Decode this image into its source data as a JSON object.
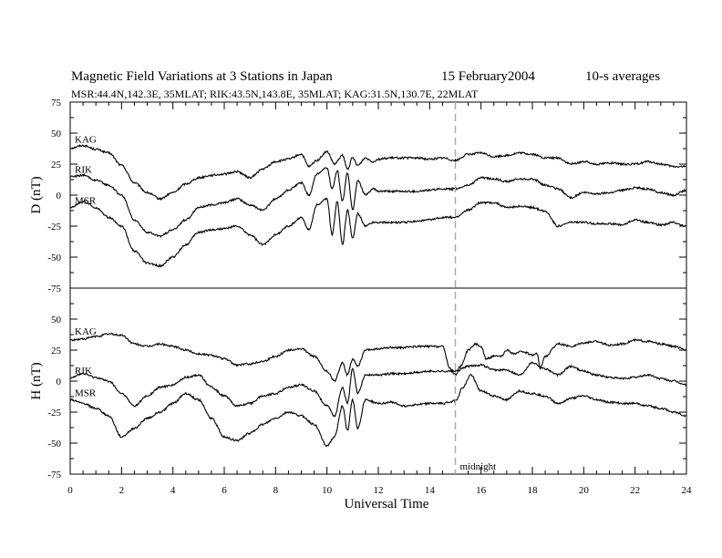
{
  "chart_data": {
    "type": "line",
    "title_left": "Magnetic Field Variations at 3 Stations in Japan",
    "title_date": "15 February2004",
    "title_avg": "10-s averages",
    "subtitle": "MSR:44.4N,142.3E, 35MLAT;  RIK:43.5N,143.8E, 35MLAT;  KAG:31.5N,130.7E, 22MLAT",
    "xlabel": "Universal Time",
    "xlim": [
      0,
      24
    ],
    "xticks": [
      "0",
      "2",
      "4",
      "6",
      "8",
      "10",
      "12",
      "14",
      "16",
      "18",
      "20",
      "22",
      "24"
    ],
    "annotation": {
      "text": "midnight",
      "x": 15
    },
    "panels": [
      {
        "ylabel": "D (nT)",
        "ylim": [
          -75,
          75
        ],
        "yticks": [
          "75",
          "50",
          "25",
          "0",
          "-25",
          "-50",
          "-75"
        ],
        "series": [
          {
            "name": "KAG",
            "x": [
              0,
              0.5,
              1,
              1.5,
              2,
              2.5,
              3,
              3.5,
              4,
              4.5,
              5,
              5.5,
              6,
              6.5,
              7,
              7.5,
              8,
              8.5,
              9,
              9.3,
              9.6,
              10,
              10.3,
              10.6,
              10.8,
              11,
              11.2,
              11.5,
              11.8,
              12,
              12.5,
              13,
              13.5,
              14,
              14.5,
              15,
              15.5,
              16,
              16.5,
              17,
              17.5,
              18,
              18.5,
              19,
              19.5,
              20,
              20.5,
              21,
              21.5,
              22,
              22.5,
              23,
              23.5,
              24
            ],
            "y": [
              38,
              40,
              37,
              34,
              24,
              10,
              2,
              -3,
              2,
              9,
              14,
              16,
              17,
              19,
              14,
              21,
              27,
              29,
              33,
              23,
              28,
              35,
              25,
              32,
              21,
              30,
              24,
              30,
              27,
              29,
              30,
              30,
              30,
              29,
              30,
              28,
              33,
              34,
              31,
              32,
              34,
              33,
              30,
              30,
              25,
              27,
              25,
              26,
              25,
              25,
              27,
              25,
              23,
              23
            ]
          },
          {
            "name": "RIK",
            "x": [
              0,
              0.5,
              1,
              1.5,
              2,
              2.5,
              3,
              3.5,
              4,
              4.5,
              5,
              5.5,
              6,
              6.5,
              7,
              7.5,
              8,
              8.5,
              9,
              9.3,
              9.6,
              10,
              10.2,
              10.4,
              10.6,
              10.8,
              11,
              11.2,
              11.5,
              11.8,
              12,
              12.5,
              13,
              13.5,
              14,
              14.5,
              15,
              15.5,
              16,
              16.5,
              17,
              17.5,
              18,
              18.5,
              19,
              19.5,
              20,
              20.5,
              21,
              21.5,
              22,
              22.5,
              23,
              23.5,
              24
            ],
            "y": [
              15,
              16,
              12,
              8,
              0,
              -20,
              -30,
              -33,
              -28,
              -20,
              -10,
              -8,
              -6,
              -3,
              -8,
              -12,
              -3,
              4,
              10,
              0,
              17,
              22,
              5,
              20,
              -5,
              18,
              -12,
              12,
              0,
              5,
              3,
              3,
              3,
              3,
              4,
              5,
              5,
              8,
              14,
              13,
              11,
              13,
              13,
              8,
              5,
              -2,
              2,
              1,
              2,
              4,
              6,
              5,
              2,
              0,
              4
            ]
          },
          {
            "name": "MSR",
            "x": [
              0,
              0.5,
              1,
              1.5,
              2,
              2.5,
              3,
              3.5,
              4,
              4.5,
              5,
              5.5,
              6,
              6.5,
              7,
              7.5,
              8,
              8.5,
              9,
              9.3,
              9.6,
              10,
              10.2,
              10.4,
              10.6,
              10.8,
              11,
              11.2,
              11.5,
              11.8,
              12,
              12.5,
              13,
              13.5,
              14,
              14.5,
              15,
              15.5,
              16,
              16.5,
              17,
              17.5,
              18,
              18.5,
              19,
              19.5,
              20,
              20.5,
              21,
              21.5,
              22,
              22.5,
              23,
              23.5,
              24
            ],
            "y": [
              -10,
              -5,
              -10,
              -18,
              -25,
              -45,
              -55,
              -57,
              -50,
              -40,
              -30,
              -28,
              -27,
              -25,
              -32,
              -40,
              -32,
              -25,
              -18,
              -28,
              -8,
              -3,
              -32,
              -5,
              -40,
              -12,
              -35,
              -15,
              -25,
              -22,
              -22,
              -22,
              -22,
              -21,
              -20,
              -18,
              -18,
              -12,
              -6,
              -6,
              -10,
              -9,
              -10,
              -13,
              -25,
              -22,
              -22,
              -23,
              -23,
              -24,
              -20,
              -22,
              -24,
              -22,
              -25
            ]
          }
        ]
      },
      {
        "ylabel": "H (nT)",
        "ylim": [
          -75,
          75
        ],
        "yticks": [
          "75",
          "50",
          "25",
          "0",
          "-25",
          "-50",
          "-75"
        ],
        "series": [
          {
            "name": "KAG",
            "x": [
              0,
              0.5,
              1,
              1.5,
              2,
              2.5,
              3,
              3.5,
              4,
              4.5,
              5,
              5.5,
              6,
              6.5,
              7,
              7.5,
              8,
              8.5,
              9,
              9.5,
              10,
              10.3,
              10.6,
              10.8,
              11,
              11.2,
              11.5,
              12,
              12.5,
              13,
              13.5,
              14,
              14.5,
              14.8,
              15,
              15.2,
              15.5,
              15.8,
              16,
              16.2,
              16.5,
              16.8,
              17,
              17.3,
              17.6,
              18,
              18.2,
              18.3,
              18.5,
              19,
              19.5,
              20,
              20.5,
              21,
              21.5,
              22,
              22.5,
              23,
              23.5,
              24
            ],
            "y": [
              33,
              34,
              36,
              38,
              37,
              30,
              28,
              30,
              28,
              25,
              22,
              21,
              18,
              13,
              14,
              16,
              20,
              25,
              26,
              20,
              8,
              0,
              15,
              5,
              18,
              12,
              25,
              26,
              27,
              27,
              28,
              28,
              28,
              10,
              5,
              12,
              25,
              30,
              28,
              18,
              20,
              20,
              25,
              22,
              24,
              21,
              22,
              10,
              20,
              30,
              28,
              31,
              32,
              29,
              30,
              33,
              32,
              30,
              28,
              25
            ]
          },
          {
            "name": "RIK",
            "x": [
              0,
              0.5,
              1,
              1.5,
              2,
              2.5,
              3,
              3.5,
              4,
              4.5,
              5,
              5.5,
              6,
              6.5,
              7,
              7.5,
              8,
              8.5,
              9,
              9.5,
              10,
              10.3,
              10.6,
              10.8,
              11,
              11.2,
              11.5,
              12,
              12.5,
              13,
              13.5,
              14,
              14.5,
              15,
              15.5,
              16,
              16.5,
              17,
              17.5,
              18,
              18.5,
              19,
              19.5,
              20,
              20.5,
              21,
              21.5,
              22,
              22.5,
              23,
              23.5,
              24
            ],
            "y": [
              3,
              6,
              3,
              0,
              -10,
              -20,
              -12,
              -5,
              -3,
              3,
              5,
              -5,
              -12,
              -20,
              -18,
              -12,
              -10,
              -5,
              -3,
              -8,
              -20,
              -28,
              -5,
              -18,
              10,
              -10,
              5,
              5,
              6,
              6,
              7,
              8,
              8,
              8,
              12,
              13,
              9,
              9,
              5,
              15,
              10,
              5,
              12,
              8,
              5,
              3,
              2,
              3,
              5,
              2,
              0,
              -3
            ]
          },
          {
            "name": "MSR",
            "x": [
              0,
              0.5,
              1,
              1.5,
              2,
              2.5,
              3,
              3.5,
              4,
              4.5,
              5,
              5.5,
              6,
              6.5,
              7,
              7.5,
              8,
              8.5,
              9,
              9.5,
              10,
              10.3,
              10.6,
              10.8,
              11,
              11.2,
              11.5,
              12,
              12.5,
              13,
              13.5,
              14,
              14.5,
              15,
              15.3,
              15.6,
              16,
              16.5,
              17,
              17.5,
              18,
              18.5,
              19,
              19.5,
              20,
              20.5,
              21,
              21.5,
              22,
              22.5,
              23,
              23.5,
              24
            ],
            "y": [
              -15,
              -18,
              -22,
              -28,
              -45,
              -38,
              -30,
              -25,
              -18,
              -10,
              -15,
              -30,
              -45,
              -48,
              -42,
              -35,
              -30,
              -25,
              -28,
              -35,
              -52,
              -45,
              -20,
              -40,
              -15,
              -38,
              -15,
              -18,
              -17,
              -20,
              -19,
              -18,
              -18,
              -16,
              -5,
              5,
              -8,
              -12,
              -15,
              -8,
              -10,
              -12,
              -18,
              -14,
              -12,
              -15,
              -17,
              -18,
              -18,
              -20,
              -22,
              -25,
              -28
            ]
          }
        ]
      }
    ]
  }
}
